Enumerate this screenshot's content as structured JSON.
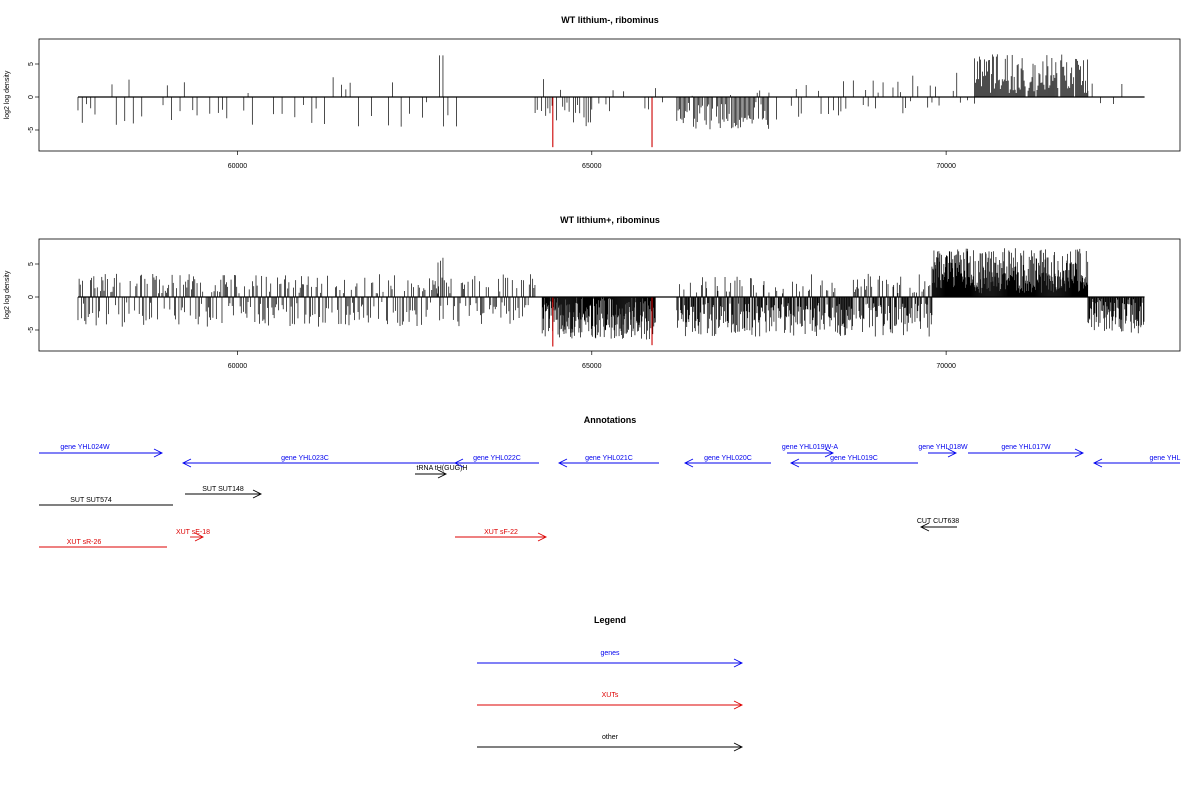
{
  "chart_data": [
    {
      "type": "bar",
      "title": "WT lithium-, ribominus",
      "ylabel": "log2 log density",
      "xlim": [
        57200,
        73300
      ],
      "ylim": [
        -8,
        8
      ],
      "x_ticks": [
        60000,
        65000,
        70000
      ],
      "x_tick_labels": [
        "60000",
        "65000",
        "70000"
      ],
      "y_ticks": [
        -5,
        0,
        5
      ],
      "y_tick_labels": [
        "-5",
        "0",
        "5"
      ],
      "baseline": {
        "from": 57750,
        "to": 72800
      },
      "highlight_color": "#cc0000",
      "highlights": [
        {
          "x": 64450,
          "value": -7.6
        },
        {
          "x": 65850,
          "value": -7.6
        }
      ],
      "density_segments": [
        {
          "from": 57750,
          "to": 63200,
          "step": 60,
          "min": -4.5,
          "max": 3,
          "pos_prob": 0.25,
          "fill_prob": 0.4,
          "seed": 11
        },
        {
          "from": 62850,
          "to": 62900,
          "step": 50,
          "min": 5,
          "max": 6.5,
          "pos_prob": 1,
          "fill_prob": 1,
          "seed": 3
        },
        {
          "from": 64200,
          "to": 65000,
          "step": 30,
          "min": -4.5,
          "max": 3,
          "pos_prob": 0.2,
          "fill_prob": 0.6,
          "seed": 17
        },
        {
          "from": 65000,
          "to": 66000,
          "step": 50,
          "min": -3,
          "max": 2,
          "pos_prob": 0.15,
          "fill_prob": 0.3,
          "seed": 23
        },
        {
          "from": 66200,
          "to": 67500,
          "step": 18,
          "min": -5,
          "max": 1,
          "pos_prob": 0.05,
          "fill_prob": 0.95,
          "seed": 29
        },
        {
          "from": 67500,
          "to": 69800,
          "step": 35,
          "min": -3.5,
          "max": 3.5,
          "pos_prob": 0.45,
          "fill_prob": 0.45,
          "seed": 31
        },
        {
          "from": 69800,
          "to": 70400,
          "step": 50,
          "min": -3,
          "max": 4,
          "pos_prob": 0.5,
          "fill_prob": 0.5,
          "seed": 37
        },
        {
          "from": 70400,
          "to": 72000,
          "step": 14,
          "min": 0.5,
          "max": 6.5,
          "pos_prob": 1,
          "fill_prob": 0.95,
          "seed": 41
        },
        {
          "from": 72000,
          "to": 72800,
          "step": 60,
          "min": -3,
          "max": 2.5,
          "pos_prob": 0.3,
          "fill_prob": 0.4,
          "seed": 43
        }
      ]
    },
    {
      "type": "bar",
      "title": "WT lithium+, ribominus",
      "ylabel": "log2 log density",
      "xlim": [
        57200,
        73300
      ],
      "ylim": [
        -8,
        8
      ],
      "x_ticks": [
        60000,
        65000,
        70000
      ],
      "x_tick_labels": [
        "60000",
        "65000",
        "70000"
      ],
      "y_ticks": [
        -5,
        0,
        5
      ],
      "y_tick_labels": [
        "-5",
        "0",
        "5"
      ],
      "baseline": {
        "from": 57750,
        "to": 72800
      },
      "highlight_color": "#cc0000",
      "highlights": [
        {
          "x": 64450,
          "value": -7.5
        },
        {
          "x": 65850,
          "value": -7.3
        }
      ],
      "density_segments": [
        {
          "from": 57750,
          "to": 64200,
          "step": 16,
          "min": -4.5,
          "max": 3.5,
          "pos_prob": 0.5,
          "fill_prob": 0.85,
          "seed": 51
        },
        {
          "from": 62830,
          "to": 62900,
          "step": 35,
          "min": 5,
          "max": 7,
          "pos_prob": 1,
          "fill_prob": 1,
          "seed": 53
        },
        {
          "from": 64300,
          "to": 65900,
          "step": 7,
          "min": -6.5,
          "max": 0,
          "pos_prob": 0,
          "fill_prob": 1,
          "seed": 57
        },
        {
          "from": 66200,
          "to": 69800,
          "step": 10,
          "min": -6,
          "max": 3.5,
          "pos_prob": 0.2,
          "fill_prob": 0.95,
          "seed": 59
        },
        {
          "from": 69800,
          "to": 72000,
          "step": 7,
          "min": 0.5,
          "max": 7.5,
          "pos_prob": 1,
          "fill_prob": 1,
          "seed": 61
        },
        {
          "from": 72000,
          "to": 72800,
          "step": 9,
          "min": -5.5,
          "max": 0,
          "pos_prob": 0,
          "fill_prob": 1,
          "seed": 67
        }
      ]
    }
  ],
  "annotations": {
    "title": "Annotations",
    "genes_color": "#0000ee",
    "xut_color": "#dd0000",
    "other_color": "#000000",
    "features": [
      {
        "label": "gene YHL024W",
        "category": "genes",
        "dir": "right",
        "row": 0
      },
      {
        "label": "gene YHL023C",
        "category": "genes",
        "dir": "left",
        "row": 1
      },
      {
        "label": "tRNA tH(GUG)H",
        "category": "other",
        "dir": "right",
        "row": 2
      },
      {
        "label": "gene YHL022C",
        "category": "genes",
        "dir": "left",
        "row": 1
      },
      {
        "label": "gene YHL021C",
        "category": "genes",
        "dir": "left",
        "row": 1
      },
      {
        "label": "gene YHL020C",
        "category": "genes",
        "dir": "left",
        "row": 1
      },
      {
        "label": "gene YHL019W-A",
        "category": "genes",
        "dir": "right",
        "row": 0
      },
      {
        "label": "gene YHL019C",
        "category": "genes",
        "dir": "left",
        "row": 1
      },
      {
        "label": "gene YHL018W",
        "category": "genes",
        "dir": "right",
        "row": 0
      },
      {
        "label": "gene YHL017W",
        "category": "genes",
        "dir": "right",
        "row": 0
      },
      {
        "label": "gene YHL",
        "category": "genes",
        "dir": "left",
        "row": 1
      },
      {
        "label": "SUT SUT574",
        "category": "other",
        "dir": "none",
        "row": 3
      },
      {
        "label": "SUT SUT148",
        "category": "other",
        "dir": "right",
        "row": 3
      },
      {
        "label": "CUT CUT638",
        "category": "other",
        "dir": "left",
        "row": 4
      },
      {
        "label": "XUT sE-18",
        "category": "xut",
        "dir": "right",
        "row": 5
      },
      {
        "label": "XUT sR-26",
        "category": "xut",
        "dir": "none",
        "row": 6
      },
      {
        "label": "XUT sF-22",
        "category": "xut",
        "dir": "right",
        "row": 5
      }
    ]
  },
  "legend": {
    "title": "Legend",
    "items": [
      {
        "label": "genes",
        "color": "#0000ee"
      },
      {
        "label": "XUTs",
        "color": "#dd0000"
      },
      {
        "label": "other",
        "color": "#000000"
      }
    ]
  }
}
